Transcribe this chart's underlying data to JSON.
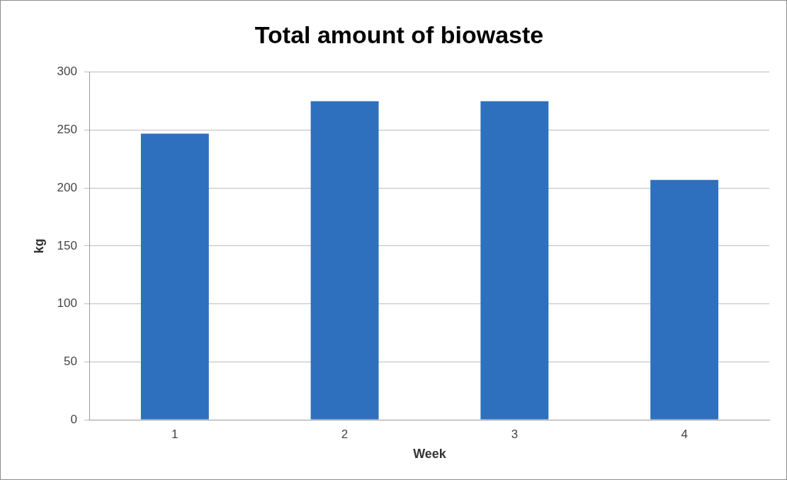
{
  "chart_data": {
    "type": "bar",
    "title": "Total amount of biowaste",
    "xlabel": "Week",
    "ylabel": "kg",
    "categories": [
      "1",
      "2",
      "3",
      "4"
    ],
    "values": [
      247,
      275,
      275,
      207
    ],
    "color": "#2e70be",
    "ylim": [
      0,
      300
    ],
    "yticks": [
      0,
      50,
      100,
      150,
      200,
      250,
      300
    ],
    "grid": "y",
    "legend": false
  }
}
